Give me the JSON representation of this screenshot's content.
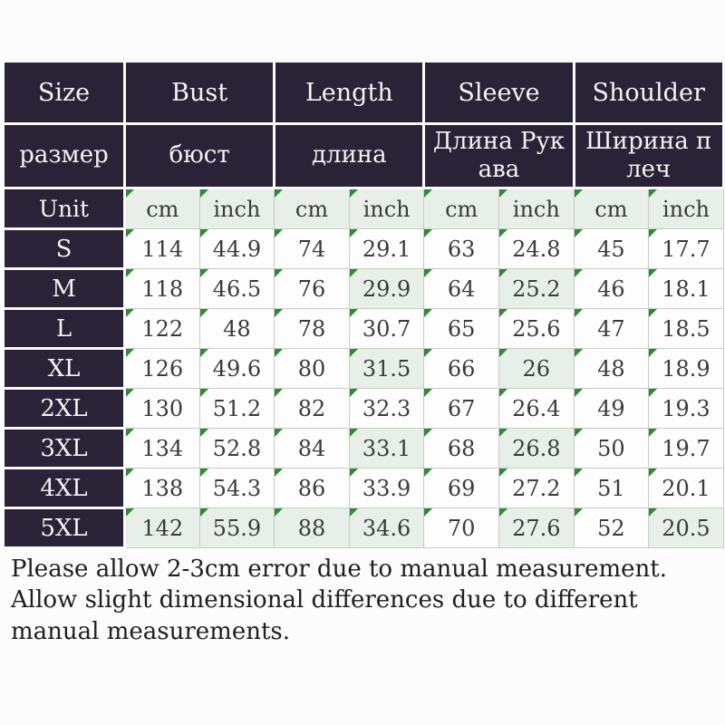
{
  "table": {
    "header_en": [
      "Size",
      "Bust",
      "Length",
      "Sleeve",
      "Shoulder"
    ],
    "header_ru": [
      "размер",
      "бюст",
      "длина",
      "Длина Рукава",
      "Ширина плеч"
    ],
    "unit_label": "Unit",
    "units": [
      "cm",
      "inch",
      "cm",
      "inch",
      "cm",
      "inch",
      "cm",
      "inch"
    ],
    "rows": [
      {
        "size": "S",
        "values": [
          "114",
          "44.9",
          "74",
          "29.1",
          "63",
          "24.8",
          "45",
          "17.7"
        ],
        "tinted": []
      },
      {
        "size": "M",
        "values": [
          "118",
          "46.5",
          "76",
          "29.9",
          "64",
          "25.2",
          "46",
          "18.1"
        ],
        "tinted": [
          3,
          5
        ]
      },
      {
        "size": "L",
        "values": [
          "122",
          "48",
          "78",
          "30.7",
          "65",
          "25.6",
          "47",
          "18.5"
        ],
        "tinted": []
      },
      {
        "size": "XL",
        "values": [
          "126",
          "49.6",
          "80",
          "31.5",
          "66",
          "26",
          "48",
          "18.9"
        ],
        "tinted": [
          3,
          5
        ]
      },
      {
        "size": "2XL",
        "values": [
          "130",
          "51.2",
          "82",
          "32.3",
          "67",
          "26.4",
          "49",
          "19.3"
        ],
        "tinted": []
      },
      {
        "size": "3XL",
        "values": [
          "134",
          "52.8",
          "84",
          "33.1",
          "68",
          "26.8",
          "50",
          "19.7"
        ],
        "tinted": [
          3,
          5
        ]
      },
      {
        "size": "4XL",
        "values": [
          "138",
          "54.3",
          "86",
          "33.9",
          "69",
          "27.2",
          "51",
          "20.1"
        ],
        "tinted": []
      },
      {
        "size": "5XL",
        "values": [
          "142",
          "55.9",
          "88",
          "34.6",
          "70",
          "27.6",
          "52",
          "20.5"
        ],
        "tinted": [
          0,
          1,
          2,
          3,
          5,
          7
        ]
      }
    ]
  },
  "footer": {
    "line1": "Please allow 2-3cm error due to manual measurement.",
    "line2": "Allow slight dimensional differences due to different manual measurements."
  },
  "colors": {
    "header_bg": "#2a2338",
    "header_text": "#f4f1f6",
    "cell_bg": "#fcfdfc",
    "cell_tint": "#e8efe9",
    "corner_marker_green": "#2e8a34",
    "grid_line": "#c6cdc6"
  }
}
